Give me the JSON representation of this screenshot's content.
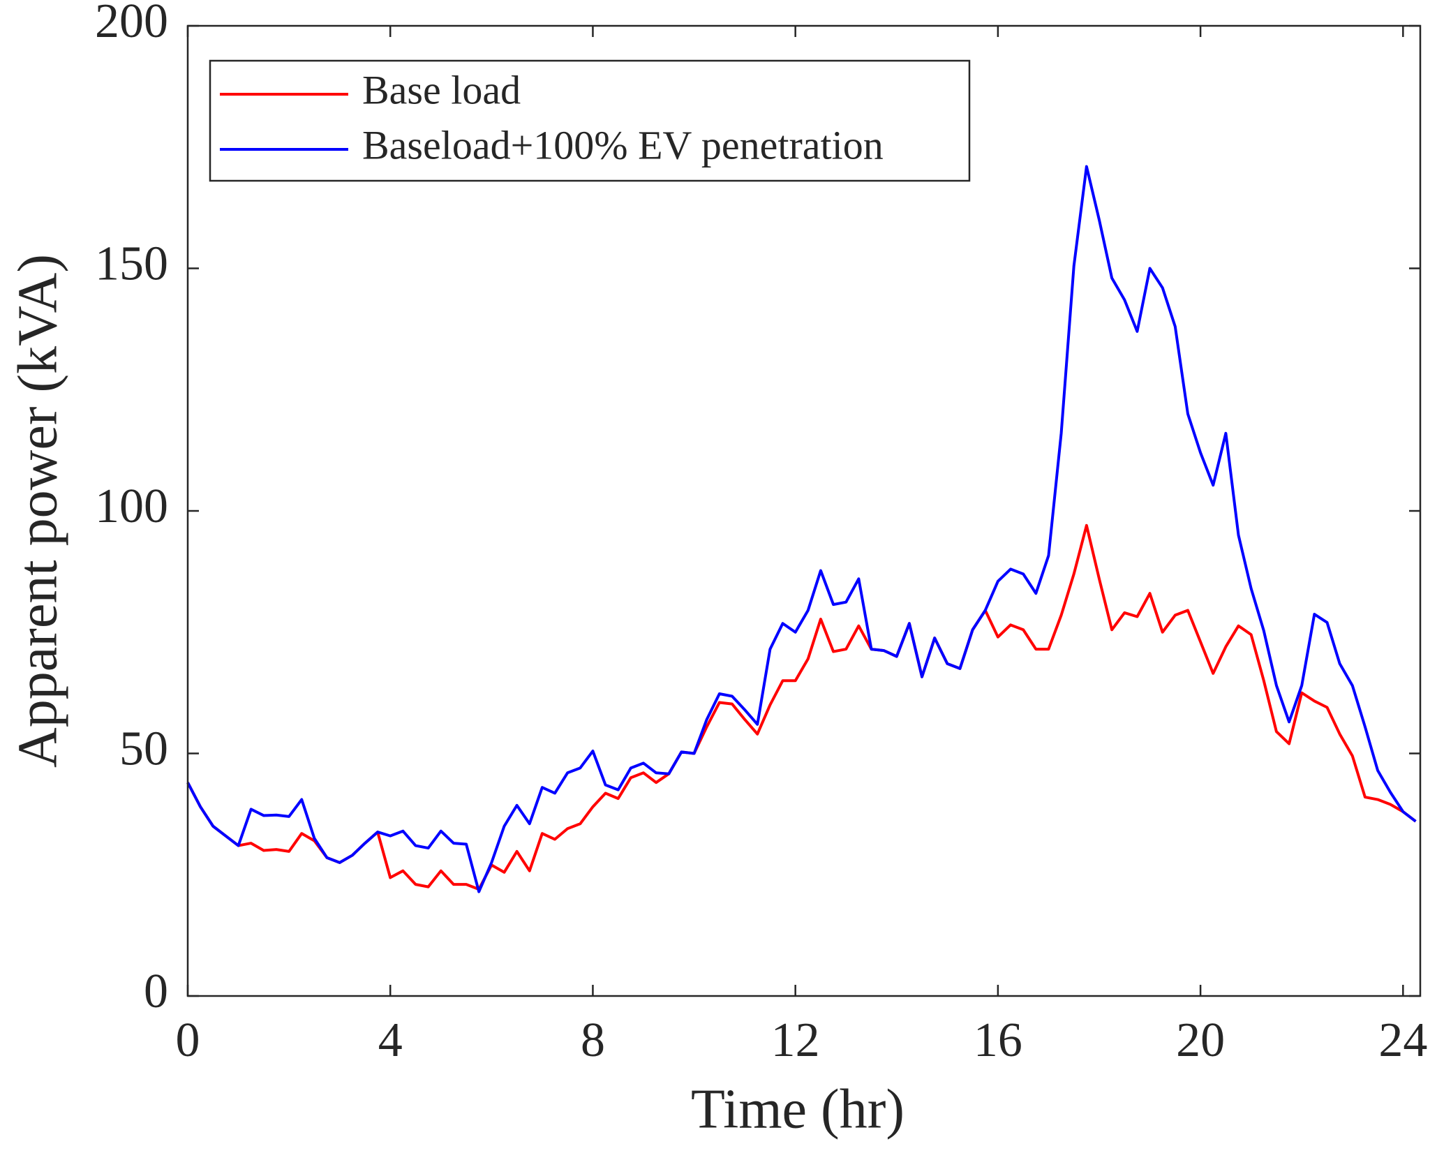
{
  "chart_data": {
    "type": "line",
    "xlabel": "Time (hr)",
    "ylabel": "Apparent power (kVA)",
    "x": [
      0,
      0.25,
      0.5,
      0.75,
      1,
      1.25,
      1.5,
      1.75,
      2,
      2.25,
      2.5,
      2.75,
      3,
      3.25,
      3.5,
      3.75,
      4,
      4.25,
      4.5,
      4.75,
      5,
      5.25,
      5.5,
      5.75,
      6,
      6.25,
      6.5,
      6.75,
      7,
      7.25,
      7.5,
      7.75,
      8,
      8.25,
      8.5,
      8.75,
      9,
      9.25,
      9.5,
      9.75,
      10,
      10.25,
      10.5,
      10.75,
      11,
      11.25,
      11.5,
      11.75,
      12,
      12.25,
      12.5,
      12.75,
      13,
      13.25,
      13.5,
      13.75,
      14,
      14.25,
      14.5,
      14.75,
      15,
      15.25,
      15.5,
      15.75,
      16,
      16.25,
      16.5,
      16.75,
      17,
      17.25,
      17.5,
      17.75,
      18,
      18.25,
      18.5,
      18.75,
      19,
      19.25,
      19.5,
      19.75,
      20,
      20.25,
      20.5,
      20.75,
      21,
      21.25,
      21.5,
      21.75,
      22,
      22.25,
      22.5,
      22.75,
      23,
      23.25,
      23.5,
      23.75,
      24,
      24.25
    ],
    "series": [
      {
        "name": "Base load",
        "color": "#ff0000",
        "values": [
          44,
          39,
          35,
          33,
          31,
          31.5,
          30,
          30.2,
          29.8,
          33.5,
          32,
          28.5,
          27.5,
          29,
          31.5,
          33.8,
          24.4,
          25.8,
          23,
          22.5,
          25.8,
          23,
          23,
          22,
          27,
          25.5,
          29.8,
          25.8,
          33.5,
          32.3,
          34.5,
          35.5,
          39,
          41.8,
          40.7,
          45,
          46,
          44,
          45.8,
          50.3,
          50,
          55.5,
          60.5,
          60.2,
          57,
          54,
          60,
          65,
          65,
          69.5,
          77.7,
          71,
          71.5,
          76.3,
          71.5,
          71.2,
          70,
          76.8,
          65.8,
          73.8,
          68.5,
          67.5,
          75.5,
          79.5,
          74,
          76.5,
          75.5,
          71.5,
          71.5,
          78.5,
          87,
          97,
          86,
          75.5,
          79,
          78.2,
          83,
          75,
          78.5,
          79.5,
          73,
          66.5,
          72,
          76.3,
          74.5,
          65,
          54.5,
          52,
          62.5,
          60.8,
          59.5,
          54,
          49.5,
          41,
          40.5,
          39.5,
          38,
          36
        ]
      },
      {
        "name": "Baseload+100% EV penetration",
        "color": "#0000ff",
        "values": [
          44,
          39,
          35,
          33,
          31,
          38.5,
          37.2,
          37.3,
          37,
          40.5,
          32.5,
          28.5,
          27.5,
          29,
          31.5,
          33.8,
          33,
          34,
          31,
          30.5,
          34,
          31.5,
          31.3,
          21.5,
          27.5,
          35,
          39.3,
          35.5,
          43,
          41.8,
          46,
          47,
          50.5,
          43.5,
          42.5,
          47,
          48,
          46,
          45.8,
          50.3,
          50,
          57,
          62.3,
          61.8,
          59,
          56,
          71.5,
          76.8,
          75,
          79.5,
          87.7,
          80.7,
          81.2,
          86,
          71.5,
          71.2,
          70,
          76.8,
          65.8,
          73.8,
          68.5,
          67.5,
          75.5,
          79.5,
          85.5,
          88,
          87,
          83,
          90.8,
          116,
          150.5,
          171,
          160,
          148,
          143.5,
          137,
          150,
          146,
          138,
          120,
          112,
          105.3,
          116,
          95,
          84,
          75.3,
          64,
          56.5,
          64,
          78.7,
          77,
          68.5,
          64,
          55.5,
          46.5,
          42,
          38,
          36
        ]
      }
    ],
    "xlim": [
      0,
      24.34
    ],
    "xticks": [
      0,
      4,
      8,
      12,
      16,
      20,
      24
    ],
    "ylim": [
      0,
      200
    ],
    "yticks": [
      0,
      50,
      100,
      150,
      200
    ],
    "legend": "upper left",
    "grid": false
  }
}
